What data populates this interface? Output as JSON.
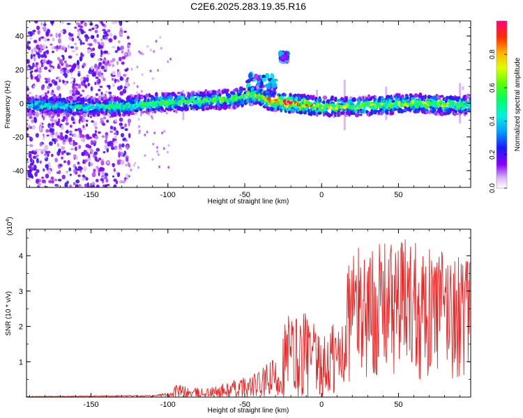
{
  "title": "C2E6.2025.283.19.35.R16",
  "chart_data": [
    {
      "type": "heatmap",
      "name": "spectrogram",
      "xlabel": "Height of straight line (km)",
      "ylabel": "Frequency (Hz)",
      "xlim": [
        -192,
        97
      ],
      "ylim": [
        -50,
        49
      ],
      "xticks": [
        -150,
        -100,
        -50,
        0,
        50
      ],
      "yticks": [
        -40,
        -20,
        0,
        20,
        40
      ],
      "xtick_labels": [
        "-150",
        "-100",
        "-50",
        "0",
        "50"
      ],
      "ytick_labels": [
        "-40",
        "-20",
        "0",
        "20",
        "40"
      ],
      "colorbar": {
        "label": "Normalized spectral amplitude",
        "range": [
          0,
          1
        ],
        "ticks": [
          0.0,
          0.2,
          0.4,
          0.6,
          0.8
        ],
        "tick_labels": [
          "0.0",
          "0.2",
          "0.4",
          "0.6",
          "0.8"
        ]
      },
      "band": {
        "center_hz": [
          [
            -192,
            -1
          ],
          [
            -150,
            -2
          ],
          [
            -130,
            -2
          ],
          [
            -110,
            0
          ],
          [
            -90,
            1
          ],
          [
            -70,
            2
          ],
          [
            -55,
            3
          ],
          [
            -45,
            5
          ],
          [
            -40,
            4
          ],
          [
            -35,
            2
          ],
          [
            -30,
            1
          ],
          [
            -20,
            0
          ],
          [
            -10,
            -1
          ],
          [
            0,
            -2
          ],
          [
            20,
            -2
          ],
          [
            40,
            -1
          ],
          [
            60,
            0
          ],
          [
            80,
            -1
          ],
          [
            97,
            -1
          ]
        ],
        "width_hz": 6,
        "peak_amplitude": [
          [
            -192,
            0.45
          ],
          [
            -130,
            0.55
          ],
          [
            -100,
            0.6
          ],
          [
            -60,
            0.6
          ],
          [
            -40,
            0.75
          ],
          [
            -25,
            0.95
          ],
          [
            -15,
            0.9
          ],
          [
            0,
            0.75
          ],
          [
            20,
            0.65
          ],
          [
            60,
            0.7
          ],
          [
            97,
            0.6
          ]
        ]
      },
      "features": [
        {
          "x_range": [
            -48,
            -30
          ],
          "y_range": [
            4,
            17
          ],
          "amplitude": 0.45
        },
        {
          "x_range": [
            -27,
            -22
          ],
          "y_range": [
            25,
            30
          ],
          "amplitude": 0.4
        }
      ],
      "scatter_region": {
        "x_range": [
          -192,
          -125
        ],
        "y_range": [
          -50,
          49
        ],
        "amplitude": 0.15
      }
    },
    {
      "type": "line",
      "name": "snr",
      "xlabel": "Height of straight line (km)",
      "ylabel": "SNR (10 * v/v)",
      "multiplier_label": "(x10",
      "multiplier_exponent": "4",
      "xlim": [
        -192,
        97
      ],
      "ylim": [
        0,
        4.75
      ],
      "xticks": [
        -150,
        -100,
        -50,
        0,
        50
      ],
      "yticks": [
        1,
        2,
        3,
        4
      ],
      "xtick_labels": [
        "-150",
        "-100",
        "-50",
        "0",
        "50"
      ],
      "ytick_labels": [
        "1",
        "2",
        "3",
        "4"
      ],
      "color": "#e82424",
      "envelope": [
        [
          -192,
          0.02
        ],
        [
          -110,
          0.06
        ],
        [
          -100,
          0.12
        ],
        [
          -95,
          0.4
        ],
        [
          -85,
          0.25
        ],
        [
          -70,
          0.3
        ],
        [
          -60,
          0.45
        ],
        [
          -50,
          0.6
        ],
        [
          -40,
          0.75
        ],
        [
          -30,
          1.2
        ],
        [
          -22,
          2.6
        ],
        [
          -15,
          2.4
        ],
        [
          -12,
          2.7
        ],
        [
          -5,
          2.2
        ],
        [
          0,
          1.5
        ],
        [
          5,
          2.3
        ],
        [
          12,
          2.5
        ],
        [
          15,
          3.4
        ],
        [
          20,
          4.3
        ],
        [
          30,
          4.2
        ],
        [
          40,
          4.4
        ],
        [
          50,
          4.4
        ],
        [
          55,
          4.6
        ],
        [
          60,
          4.7
        ],
        [
          70,
          4.2
        ],
        [
          80,
          4.25
        ],
        [
          90,
          4.0
        ],
        [
          97,
          3.9
        ]
      ]
    }
  ]
}
